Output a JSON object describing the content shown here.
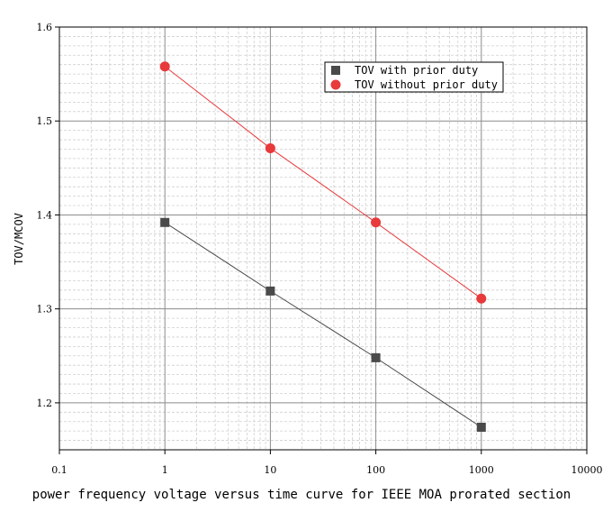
{
  "chart_data": {
    "type": "line",
    "title": "",
    "xlabel": "",
    "ylabel": "TOV/MCOV",
    "xscale": "log",
    "xlim": [
      0.1,
      10000
    ],
    "ylim": [
      1.15,
      1.6
    ],
    "x_ticks": [
      "0.1",
      "1",
      "10",
      "100",
      "1000",
      "10000"
    ],
    "y_ticks": [
      "1.2",
      "1.3",
      "1.4",
      "1.5",
      "1.6"
    ],
    "grid": true,
    "legend_position": "top-right",
    "series": [
      {
        "name": "TOV with prior duty",
        "marker": "square",
        "color": "#4a4a4a",
        "x": [
          1,
          10,
          100,
          1000
        ],
        "y": [
          1.392,
          1.319,
          1.248,
          1.174
        ]
      },
      {
        "name": "TOV without prior duty",
        "marker": "circle",
        "color": "#e8393b",
        "x": [
          1,
          10,
          100,
          1000
        ],
        "y": [
          1.558,
          1.471,
          1.392,
          1.311
        ]
      }
    ]
  },
  "caption": "power frequency voltage versus time curve for IEEE MOA prorated section"
}
